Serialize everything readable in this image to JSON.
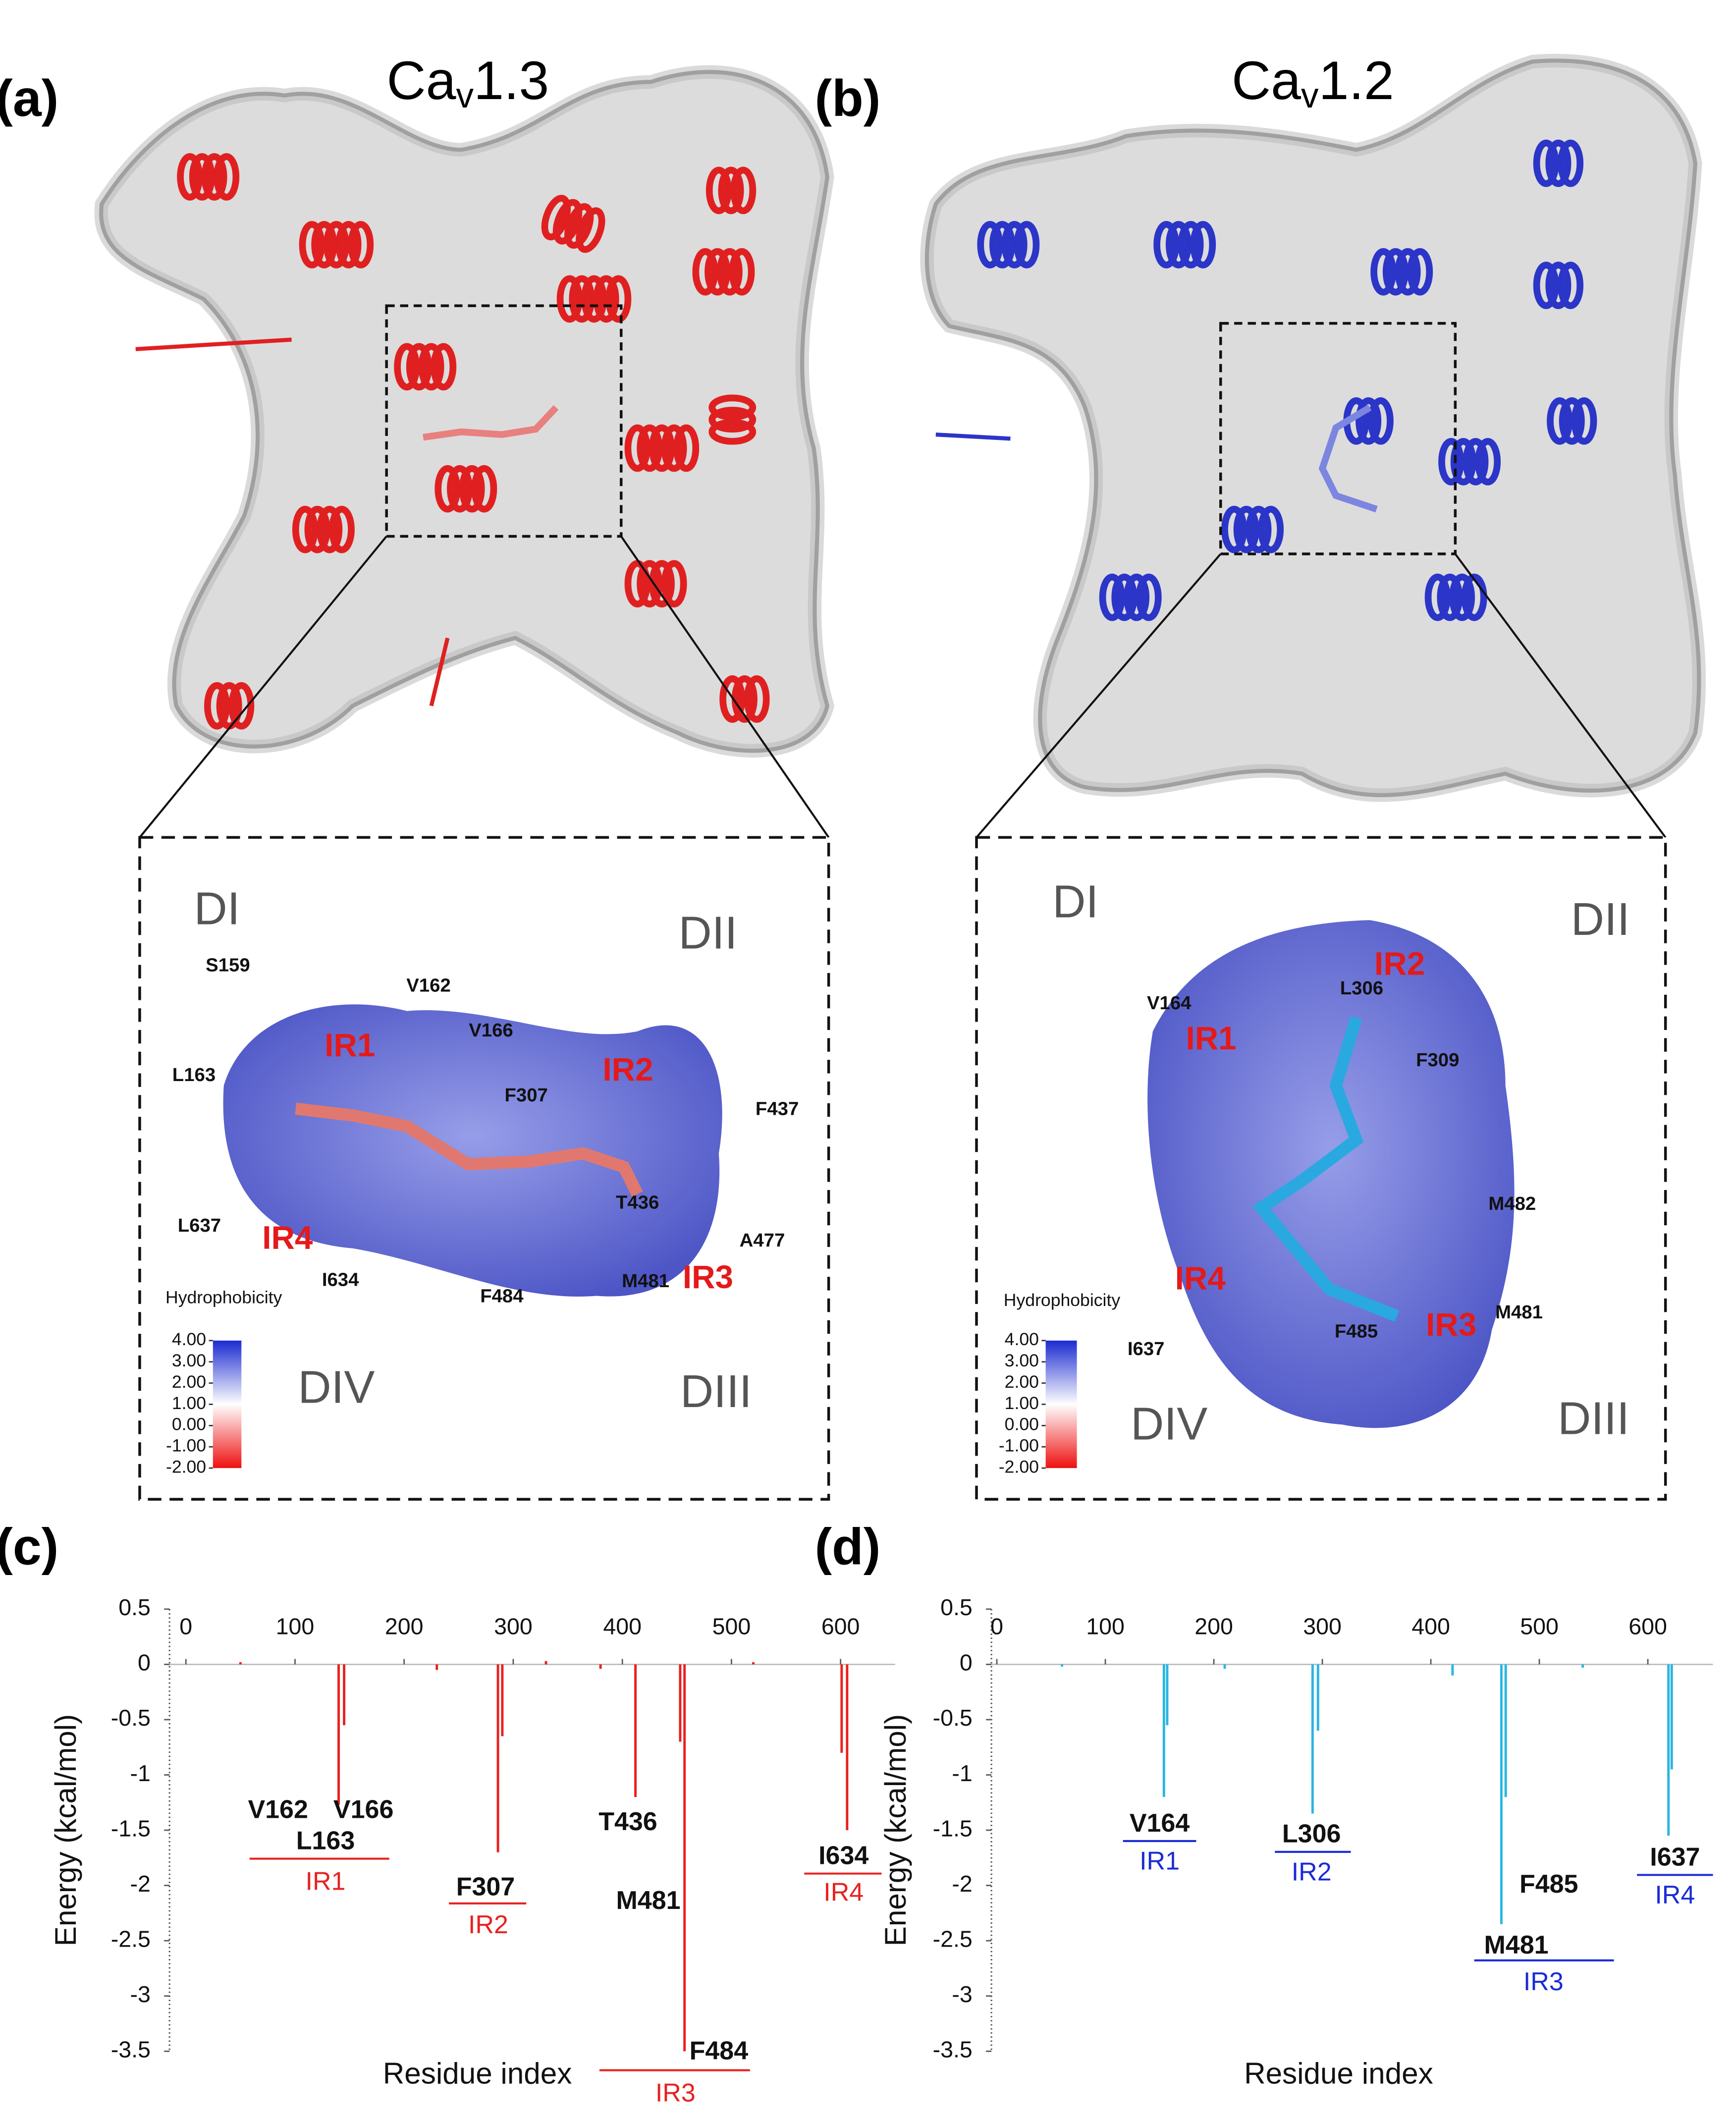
{
  "panels": [
    {
      "label": "(a)",
      "title": {
        "base": "Ca",
        "sub": "v",
        "rest": "1.3"
      },
      "inset": {
        "domains": [
          "DI",
          "DII",
          "DIV",
          "DIII"
        ],
        "residues": [
          "S159",
          "V162",
          "V166",
          "L163",
          "F307",
          "F437",
          "T436",
          "L637",
          "A477",
          "M481",
          "I634",
          "F484"
        ],
        "regions": [
          "IR1",
          "IR2",
          "IR4",
          "IR3"
        ],
        "scale_title": "Hydrophobicity",
        "scale_ticks": [
          {
            "value": 4,
            "label": "4.00"
          },
          {
            "value": 3,
            "label": "3.00"
          },
          {
            "value": 2,
            "label": "2.00"
          },
          {
            "value": 1,
            "label": "1.00"
          },
          {
            "value": 0,
            "label": "0.00"
          },
          {
            "value": -1,
            "label": "-1.00"
          },
          {
            "value": -2,
            "label": "-2.00"
          }
        ]
      }
    },
    {
      "label": "(b)",
      "title": {
        "base": "Ca",
        "sub": "v",
        "rest": "1.2"
      },
      "inset": {
        "domains": [
          "DI",
          "DII",
          "DIV",
          "DIII"
        ],
        "residues": [
          "V164",
          "L306",
          "F309",
          "M482",
          "I637",
          "F485",
          "M481"
        ],
        "regions": [
          "IR1",
          "IR2",
          "IR4",
          "IR3"
        ],
        "scale_title": "Hydrophobicity",
        "scale_ticks": [
          {
            "value": 4,
            "label": "4.00"
          },
          {
            "value": 3,
            "label": "3.00"
          },
          {
            "value": 2,
            "label": "2.00"
          },
          {
            "value": 1,
            "label": "1.00"
          },
          {
            "value": 0,
            "label": "0.00"
          },
          {
            "value": -1,
            "label": "-1.00"
          },
          {
            "value": -2,
            "label": "-2.00"
          }
        ]
      }
    }
  ],
  "chart_data": [
    {
      "type": "bar",
      "label": "(c)",
      "x_label": "Residue index",
      "y_label": "Energy (kcal/mol)",
      "color": "#e8211f",
      "x": [
        50,
        140,
        145,
        230,
        286,
        290,
        330,
        380,
        412,
        453,
        457,
        520,
        601,
        606
      ],
      "values": [
        0.02,
        -1.27,
        -0.55,
        -0.05,
        -1.7,
        -0.65,
        0.03,
        -0.04,
        -1.2,
        -0.7,
        -3.5,
        0.02,
        -0.8,
        -1.5
      ],
      "xlim": [
        -15,
        650
      ],
      "xticks": [
        0,
        100,
        200,
        300,
        400,
        500,
        600
      ],
      "ylim": [
        -3.5,
        0.5
      ],
      "yticks": [
        0.5,
        0,
        -0.5,
        -1,
        -1.5,
        -2,
        -2.5,
        -3,
        -3.5
      ],
      "annotations": [
        "V162",
        "V166",
        "L163",
        "F307",
        "T436",
        "M481",
        "I634",
        "F484"
      ],
      "regions": [
        "IR1",
        "IR2",
        "IR4",
        "IR3"
      ],
      "region_color": "#e8211f"
    },
    {
      "type": "bar",
      "label": "(d)",
      "x_label": "Residue index",
      "y_label": "Energy (kcal/mol)",
      "color": "#29b6e0",
      "x": [
        60,
        154,
        157,
        210,
        291,
        296,
        420,
        465,
        469,
        540,
        619,
        622
      ],
      "values": [
        -0.02,
        -1.2,
        -0.55,
        -0.04,
        -1.35,
        -0.6,
        -0.1,
        -2.35,
        -1.2,
        -0.03,
        -1.55,
        -0.95
      ],
      "xlim": [
        -5,
        660
      ],
      "xticks": [
        0,
        100,
        200,
        300,
        400,
        500,
        600
      ],
      "ylim": [
        -3.5,
        0.5
      ],
      "yticks": [
        0.5,
        0,
        -0.5,
        -1,
        -1.5,
        -2,
        -2.5,
        -3,
        -3.5
      ],
      "annotations": [
        "V164",
        "L306",
        "F485",
        "M481",
        "I637"
      ],
      "regions": [
        "IR1",
        "IR2",
        "IR3",
        "IR4"
      ],
      "region_color": "#1a2bd6"
    }
  ]
}
